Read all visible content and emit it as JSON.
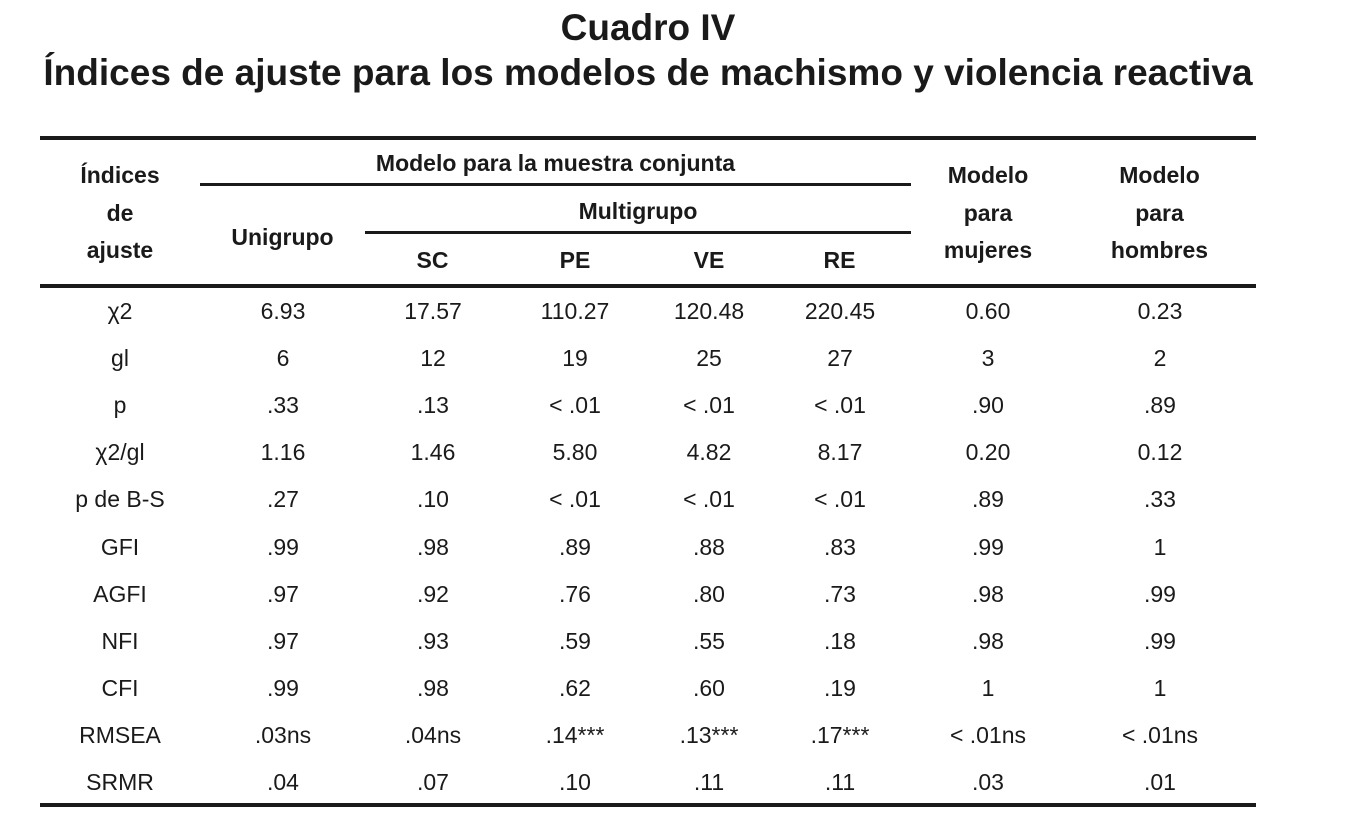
{
  "title": "Cuadro IV",
  "subtitle": "Índices de ajuste para los modelos de machismo y violencia reactiva",
  "header": {
    "indices": [
      "Índices",
      "de",
      "ajuste"
    ],
    "muestra_conjunta": "Modelo para la muestra conjunta",
    "unigrupo": "Unigrupo",
    "multigrupo": "Multigrupo",
    "sub": [
      "SC",
      "PE",
      "VE",
      "RE"
    ],
    "mujeres": [
      "Modelo",
      "para",
      "mujeres"
    ],
    "hombres": [
      "Modelo",
      "para",
      "hombres"
    ]
  },
  "rows": [
    [
      "χ2",
      "6.93",
      "17.57",
      "110.27",
      "120.48",
      "220.45",
      "0.60",
      "0.23"
    ],
    [
      "gl",
      "6",
      "12",
      "19",
      "25",
      "27",
      "3",
      "2"
    ],
    [
      "p",
      ".33",
      ".13",
      "< .01",
      "< .01",
      "< .01",
      ".90",
      ".89"
    ],
    [
      "χ2/gl",
      "1.16",
      "1.46",
      "5.80",
      "4.82",
      "8.17",
      "0.20",
      "0.12"
    ],
    [
      "p de B-S",
      ".27",
      ".10",
      "< .01",
      "< .01",
      "< .01",
      ".89",
      ".33"
    ],
    [
      "GFI",
      ".99",
      ".98",
      ".89",
      ".88",
      ".83",
      ".99",
      "1"
    ],
    [
      "AGFI",
      ".97",
      ".92",
      ".76",
      ".80",
      ".73",
      ".98",
      ".99"
    ],
    [
      "NFI",
      ".97",
      ".93",
      ".59",
      ".55",
      ".18",
      ".98",
      ".99"
    ],
    [
      "CFI",
      ".99",
      ".98",
      ".62",
      ".60",
      ".19",
      "1",
      "1"
    ],
    [
      "RMSEA",
      ".03ns",
      ".04ns",
      ".14***",
      ".13***",
      ".17***",
      "< .01ns",
      "< .01ns"
    ],
    [
      "SRMR",
      ".04",
      ".07",
      ".10",
      ".11",
      ".11",
      ".03",
      ".01"
    ]
  ]
}
